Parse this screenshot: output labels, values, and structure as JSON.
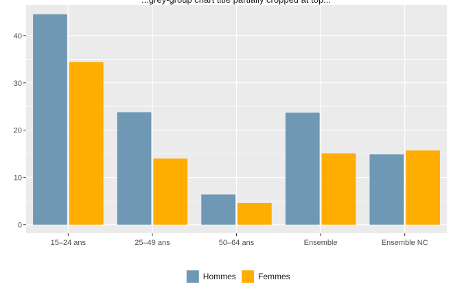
{
  "chart_data": {
    "type": "bar",
    "title": "...grey-group chart title partially cropped at top...",
    "xlabel": "",
    "ylabel": "",
    "categories": [
      "15–24 ans",
      "25–49 ans",
      "50–64 ans",
      "Ensemble",
      "Ensemble NC"
    ],
    "series": [
      {
        "name": "Hommes",
        "color": "#6e98b4",
        "values": [
          44.5,
          23.8,
          6.4,
          23.7,
          14.9
        ]
      },
      {
        "name": "Femmes",
        "color": "#ffad00",
        "values": [
          34.4,
          14.0,
          4.6,
          15.1,
          15.7
        ]
      }
    ],
    "ylim": [
      -1.8,
      46.5
    ],
    "yticks": [
      0,
      10,
      20,
      30,
      40
    ],
    "grid": true,
    "legend_position": "bottom",
    "colors": {
      "panel": "#ebebeb",
      "grid": "#ffffff",
      "text": "#4d4d4d"
    }
  }
}
